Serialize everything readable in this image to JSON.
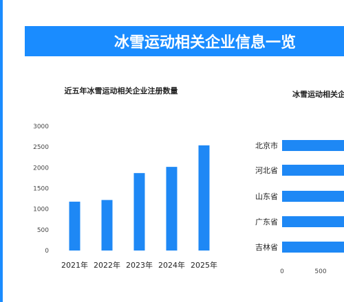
{
  "banner": {
    "title": "冰雪运动相关企业信息一览"
  },
  "colors": {
    "accent": "#1a8cff",
    "bar": "#1e88f5"
  },
  "chart_data": [
    {
      "type": "bar",
      "title": "近五年冰雪运动相关企业注册数量",
      "categories": [
        "2021年",
        "2022年",
        "2023年",
        "2024年",
        "2025年"
      ],
      "values": [
        1180,
        1220,
        1870,
        2020,
        2540
      ],
      "ylim": [
        0,
        3000
      ],
      "yticks": [
        0,
        500,
        1000,
        1500,
        2000,
        2500,
        3000
      ],
      "grid": false
    },
    {
      "type": "bar",
      "orientation": "horizontal",
      "title": "冰雪运动相关企业",
      "categories": [
        "北京市",
        "河北省",
        "山东省",
        "广东省",
        "吉林省"
      ],
      "xticks": [
        "0",
        "500"
      ],
      "grid": false
    }
  ]
}
